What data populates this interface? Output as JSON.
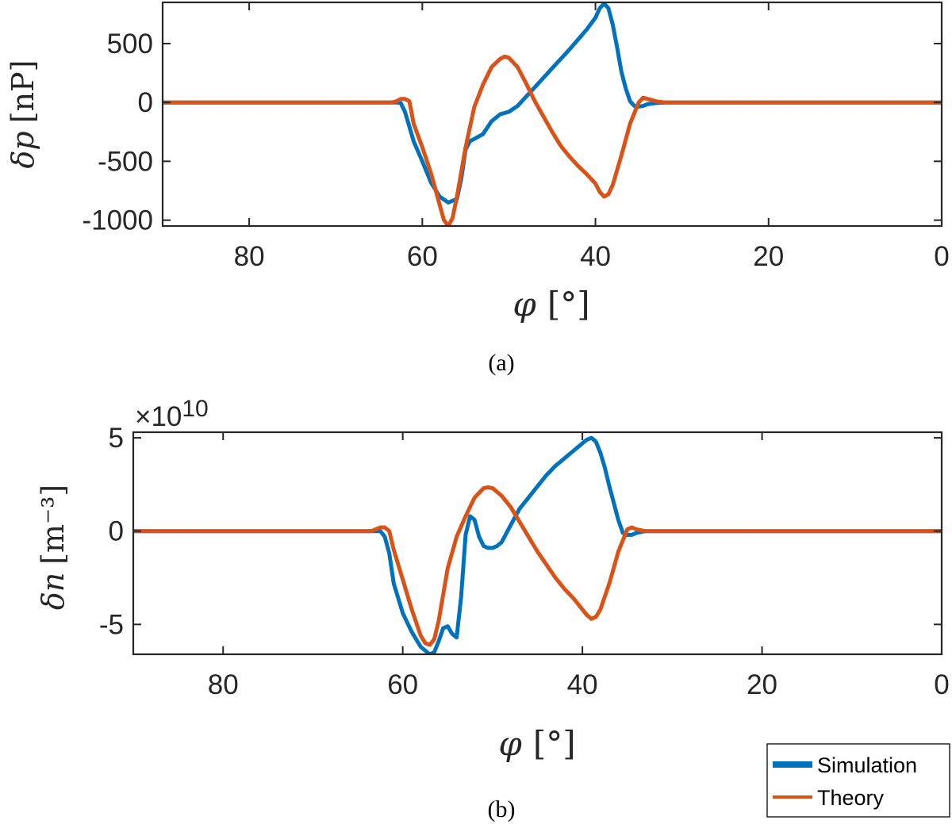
{
  "chart_data": [
    {
      "type": "line",
      "caption": "(a)",
      "xlabel_symbol": "φ",
      "xlabel_unit": "[°]",
      "ylabel_symbol": "δp",
      "ylabel_unit": "[nP]",
      "xlim": [
        90,
        0
      ],
      "x_reversed": true,
      "ylim": [
        -1050,
        850
      ],
      "xticks": [
        80,
        60,
        40,
        20,
        0
      ],
      "yticks": [
        500,
        0,
        -500,
        -1000
      ],
      "series": [
        {
          "name": "Simulation",
          "color": "#0072BD",
          "x": [
            90,
            64,
            63,
            62.5,
            62,
            61,
            60,
            59,
            58,
            57,
            56,
            55.5,
            55,
            54.5,
            54,
            53,
            52,
            51,
            50,
            49,
            47,
            45,
            43,
            41,
            40,
            39.5,
            39,
            38.5,
            38,
            37.5,
            37,
            36.5,
            36,
            35.5,
            35,
            34.5,
            34,
            33,
            32,
            30,
            0
          ],
          "y": [
            0,
            0,
            0,
            -5,
            -80,
            -330,
            -500,
            -680,
            -800,
            -850,
            -820,
            -650,
            -400,
            -330,
            -310,
            -270,
            -160,
            -100,
            -80,
            -30,
            130,
            290,
            450,
            620,
            720,
            800,
            840,
            800,
            660,
            470,
            260,
            120,
            10,
            -30,
            -35,
            -30,
            -15,
            -5,
            0,
            0,
            0
          ]
        },
        {
          "name": "Theory",
          "color": "#D95319",
          "x": [
            90,
            63.5,
            63,
            62.5,
            62,
            61.5,
            61,
            60,
            59,
            58,
            57.5,
            57,
            56.5,
            56,
            55,
            54,
            53,
            52,
            51,
            50.5,
            50,
            49,
            48,
            47,
            46,
            45,
            44,
            43,
            42,
            41,
            40,
            39.5,
            39,
            38.5,
            38,
            37,
            36,
            35,
            34.5,
            34,
            33,
            32,
            0
          ],
          "y": [
            0,
            0,
            10,
            30,
            30,
            10,
            -180,
            -380,
            -600,
            -870,
            -1000,
            -1050,
            -980,
            -800,
            -380,
            -40,
            150,
            300,
            370,
            390,
            380,
            300,
            160,
            10,
            -120,
            -250,
            -370,
            -460,
            -540,
            -610,
            -690,
            -760,
            -800,
            -780,
            -700,
            -450,
            -180,
            0,
            40,
            30,
            10,
            0,
            0
          ]
        }
      ]
    },
    {
      "type": "line",
      "caption": "(b)",
      "xlabel_symbol": "φ",
      "xlabel_unit": "[°]",
      "ylabel_symbol": "δn",
      "ylabel_unit": "[m⁻³]",
      "multiplier_text": "×10",
      "multiplier_exp": "10",
      "xlim": [
        90,
        0
      ],
      "x_reversed": true,
      "ylim": [
        -6.6,
        5.3
      ],
      "xticks": [
        80,
        60,
        40,
        20,
        0
      ],
      "yticks": [
        5,
        0,
        -5
      ],
      "ytick_labels": [
        "5",
        "0",
        "-5"
      ],
      "series": [
        {
          "name": "Simulation",
          "color": "#0072BD",
          "x": [
            90,
            64,
            63,
            62.5,
            62,
            61.5,
            61,
            60,
            59,
            58,
            57,
            56.5,
            56,
            55.5,
            55,
            54.5,
            54,
            53.5,
            53,
            52.5,
            52,
            51.5,
            51,
            50.5,
            50,
            49.5,
            49,
            48,
            47,
            46,
            45,
            44,
            43,
            42,
            41,
            40,
            39.5,
            39,
            38.5,
            38,
            37.5,
            37,
            36,
            35.5,
            35,
            34.5,
            34,
            33,
            32,
            0
          ],
          "y": [
            0,
            0,
            0,
            0,
            -0.3,
            -1.2,
            -2.8,
            -4.4,
            -5.4,
            -6.2,
            -6.6,
            -6.5,
            -5.9,
            -5.2,
            -5.1,
            -5.5,
            -5.7,
            -3.5,
            -0.2,
            0.8,
            0.6,
            -0.3,
            -0.8,
            -0.9,
            -0.9,
            -0.8,
            -0.6,
            0.3,
            1.2,
            1.8,
            2.4,
            3,
            3.5,
            3.9,
            4.3,
            4.7,
            4.9,
            5,
            4.8,
            4.2,
            3.4,
            2.4,
            0.6,
            -0.1,
            -0.2,
            -0.2,
            -0.1,
            0,
            0,
            0
          ]
        },
        {
          "name": "Theory",
          "color": "#D95319",
          "x": [
            90,
            63.5,
            63,
            62.5,
            62,
            61.5,
            61,
            60,
            59,
            58,
            57.5,
            57,
            56.5,
            56,
            55,
            54,
            53,
            52,
            51,
            50.5,
            50,
            49,
            48,
            47,
            46,
            45,
            44,
            43,
            42,
            41,
            40,
            39.5,
            39,
            38.5,
            38,
            37,
            36,
            35,
            34.5,
            34,
            33,
            32,
            0
          ],
          "y": [
            0,
            0,
            0.1,
            0.2,
            0.2,
            0,
            -1,
            -2.6,
            -4.2,
            -5.6,
            -6,
            -6.1,
            -5.8,
            -4.8,
            -2,
            -0.3,
            0.8,
            1.8,
            2.3,
            2.35,
            2.3,
            1.9,
            1.3,
            0.5,
            -0.3,
            -1.1,
            -1.8,
            -2.5,
            -3.1,
            -3.6,
            -4.2,
            -4.5,
            -4.7,
            -4.6,
            -4.2,
            -2.8,
            -1.1,
            0.1,
            0.2,
            0.1,
            0,
            0,
            0
          ]
        }
      ]
    }
  ],
  "legend": {
    "placement": "bottom-right",
    "entries": [
      "Simulation",
      "Theory"
    ]
  }
}
